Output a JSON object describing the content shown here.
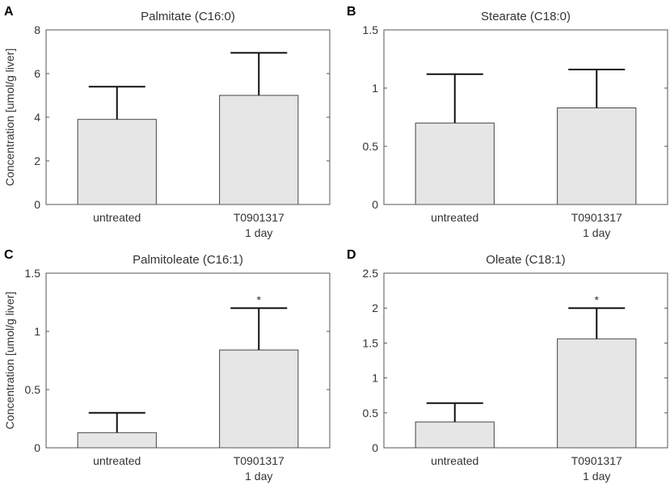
{
  "colors": {
    "bar_fill": "#e6e6e6",
    "bar_stroke": "#444444",
    "axis": "#555555",
    "errorbar": "#111111",
    "text": "#333333"
  },
  "chart_data": [
    {
      "type": "bar",
      "panel_label": "A",
      "title": "Palmitate (C16:0)",
      "ylabel": "Concentration [umol/g liver]",
      "categories": [
        [
          "untreated"
        ],
        [
          "T0901317",
          "1 day"
        ]
      ],
      "values": [
        3.9,
        5.0
      ],
      "error_upper": [
        5.4,
        6.95
      ],
      "significance": [
        "",
        ""
      ],
      "ylim": [
        0,
        8
      ],
      "yticks": [
        0,
        2,
        4,
        6,
        8
      ],
      "ytick_labels": [
        "0",
        "2",
        "4",
        "6",
        "8"
      ]
    },
    {
      "type": "bar",
      "panel_label": "B",
      "title": "Stearate (C18:0)",
      "ylabel": "",
      "categories": [
        [
          "untreated"
        ],
        [
          "T0901317",
          "1 day"
        ]
      ],
      "values": [
        0.7,
        0.83
      ],
      "error_upper": [
        1.12,
        1.16
      ],
      "significance": [
        "",
        ""
      ],
      "ylim": [
        0,
        1.5
      ],
      "yticks": [
        0,
        0.5,
        1,
        1.5
      ],
      "ytick_labels": [
        "0",
        "0.5",
        "1",
        "1.5"
      ]
    },
    {
      "type": "bar",
      "panel_label": "C",
      "title": "Palmitoleate (C16:1)",
      "ylabel": "Concentration [umol/g liver]",
      "categories": [
        [
          "untreated"
        ],
        [
          "T0901317",
          "1 day"
        ]
      ],
      "values": [
        0.13,
        0.84
      ],
      "error_upper": [
        0.3,
        1.2
      ],
      "significance": [
        "",
        "*"
      ],
      "ylim": [
        0,
        1.5
      ],
      "yticks": [
        0,
        0.5,
        1,
        1.5
      ],
      "ytick_labels": [
        "0",
        "0.5",
        "1",
        "1.5"
      ]
    },
    {
      "type": "bar",
      "panel_label": "D",
      "title": "Oleate (C18:1)",
      "ylabel": "",
      "categories": [
        [
          "untreated"
        ],
        [
          "T0901317",
          "1 day"
        ]
      ],
      "values": [
        0.37,
        1.56
      ],
      "error_upper": [
        0.64,
        2.0
      ],
      "significance": [
        "",
        "*"
      ],
      "ylim": [
        0,
        2.5
      ],
      "yticks": [
        0,
        0.5,
        1,
        1.5,
        2,
        2.5
      ],
      "ytick_labels": [
        "0",
        "0.5",
        "1",
        "1.5",
        "2",
        "2.5"
      ]
    }
  ]
}
